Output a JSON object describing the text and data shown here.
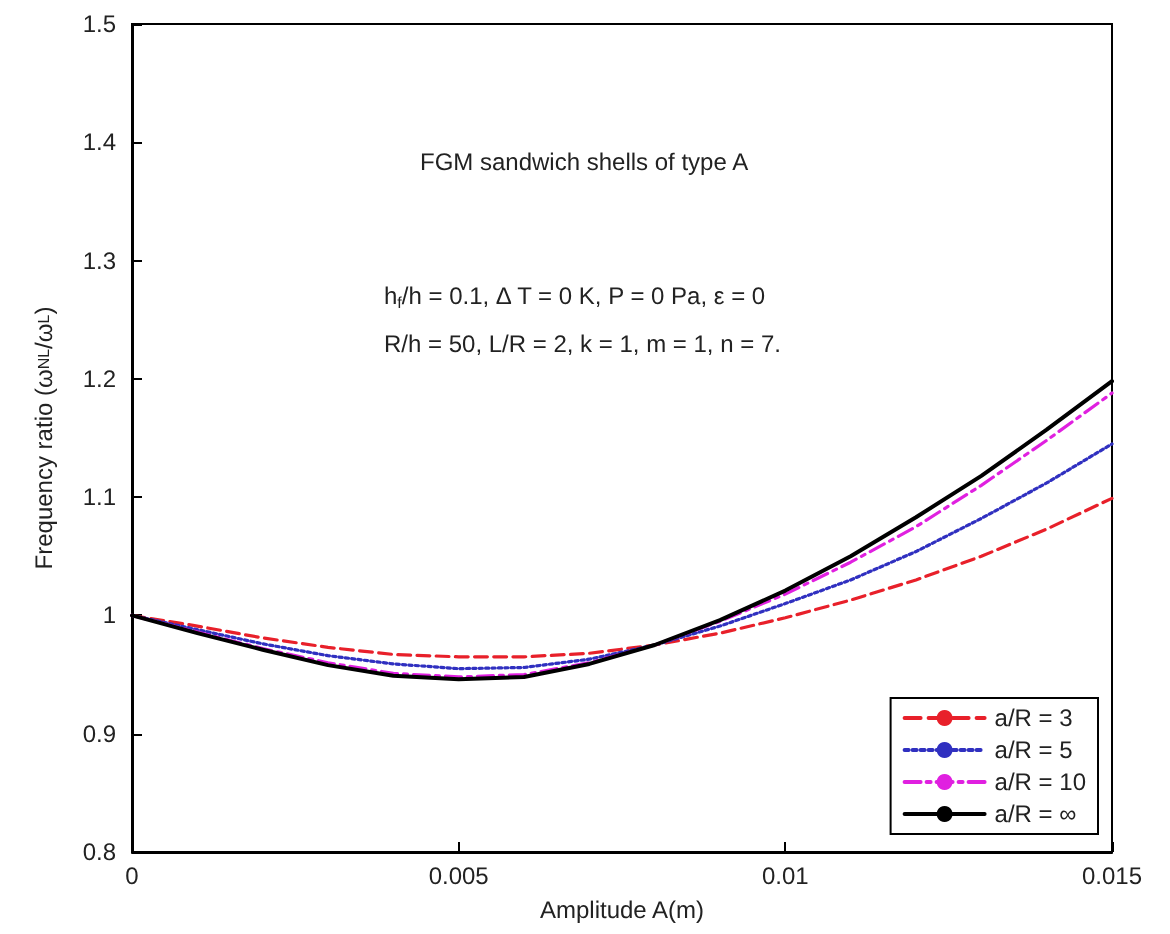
{
  "chart_data": {
    "type": "line",
    "xlabel": "Amplitude A(m)",
    "ylabel": "Frequency ratio (ω$_{NL}$/ω$_{L}$)",
    "annotations": [
      "FGM sandwich shells of type A",
      "h$_{f}$/h = 0.1, Δ T = 0 K, P = 0 Pa, ε = 0",
      "R/h = 50, L/R = 2, k = 1, m = 1, n = 7."
    ],
    "x": [
      0,
      0.001,
      0.002,
      0.003,
      0.004,
      0.005,
      0.006,
      0.007,
      0.008,
      0.009,
      0.01,
      0.011,
      0.012,
      0.013,
      0.014,
      0.015
    ],
    "series": [
      {
        "name": "a/R = 3",
        "color": "#e8202a",
        "line_style": "dashed",
        "values": [
          1,
          0.991,
          0.981,
          0.973,
          0.967,
          0.965,
          0.965,
          0.968,
          0.975,
          0.985,
          0.998,
          1.013,
          1.03,
          1.05,
          1.073,
          1.099
        ]
      },
      {
        "name": "a/R = 5",
        "color": "#3030c0",
        "line_style": "dotted",
        "values": [
          1,
          0.988,
          0.976,
          0.966,
          0.959,
          0.955,
          0.956,
          0.963,
          0.975,
          0.991,
          1.01,
          1.03,
          1.054,
          1.082,
          1.112,
          1.145
        ]
      },
      {
        "name": "a/R = 10",
        "color": "#e020e0",
        "line_style": "dashed",
        "values": [
          1,
          0.986,
          0.972,
          0.96,
          0.951,
          0.948,
          0.95,
          0.96,
          0.975,
          0.995,
          1.018,
          1.045,
          1.075,
          1.11,
          1.148,
          1.188
        ]
      },
      {
        "name": "a/R = ∞",
        "color": "#000000",
        "line_style": "solid",
        "values": [
          1,
          0.985,
          0.971,
          0.958,
          0.949,
          0.946,
          0.948,
          0.959,
          0.975,
          0.996,
          1.021,
          1.05,
          1.083,
          1.118,
          1.157,
          1.198
        ]
      }
    ],
    "xlim": [
      0,
      0.015
    ],
    "xticks": [
      0,
      0.005,
      0.01,
      0.015
    ],
    "ylim": [
      0.8,
      1.5
    ],
    "yticks": [
      0.8,
      0.9,
      1,
      1.1,
      1.2,
      1.3,
      1.4,
      1.5
    ],
    "legend": "bottom right",
    "marker": "none"
  }
}
